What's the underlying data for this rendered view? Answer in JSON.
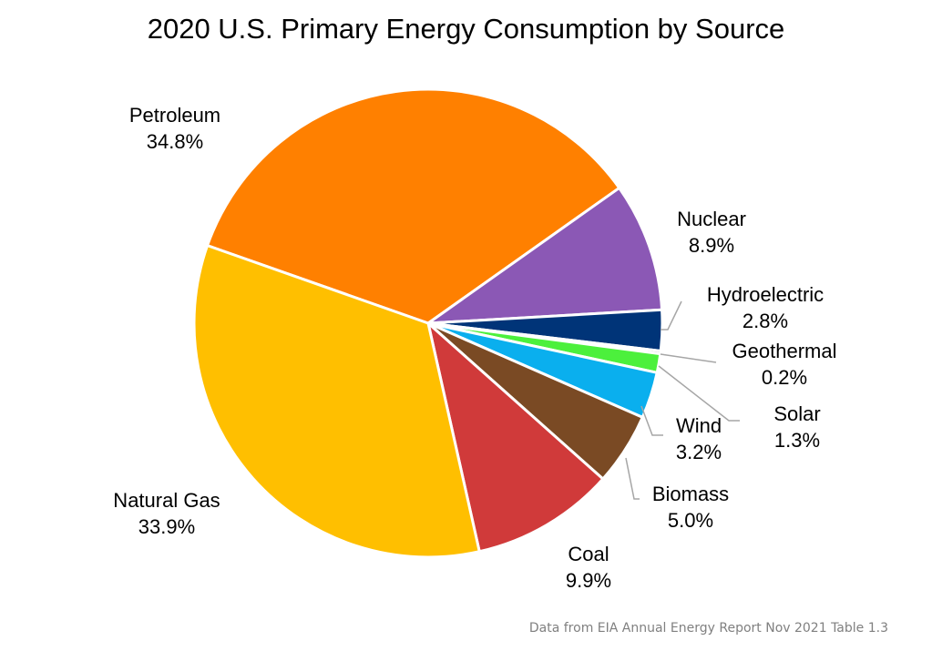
{
  "chart_data": {
    "type": "pie",
    "title": "2020 U.S. Primary Energy Consumption by Source",
    "footnote": "Data from EIA Annual Energy Report Nov 2021 Table 1.3",
    "slices": [
      {
        "label": "Petroleum",
        "value": 34.8,
        "value_label": "34.8%",
        "color": "#FF8000"
      },
      {
        "label": "Nuclear",
        "value": 8.9,
        "value_label": "8.9%",
        "color": "#8B58B5"
      },
      {
        "label": "Hydroelectric",
        "value": 2.8,
        "value_label": "2.8%",
        "color": "#003478"
      },
      {
        "label": "Geothermal",
        "value": 0.2,
        "value_label": "0.2%",
        "color": "#808080"
      },
      {
        "label": "Solar",
        "value": 1.3,
        "value_label": "1.3%",
        "color": "#4CF03C"
      },
      {
        "label": "Wind",
        "value": 3.2,
        "value_label": "3.2%",
        "color": "#0AAFEE"
      },
      {
        "label": "Biomass",
        "value": 5.0,
        "value_label": "5.0%",
        "color": "#7A4A24"
      },
      {
        "label": "Coal",
        "value": 9.9,
        "value_label": "9.9%",
        "color": "#D03A3A"
      },
      {
        "label": "Natural Gas",
        "value": 33.9,
        "value_label": "33.9%",
        "color": "#FFBF00"
      }
    ]
  }
}
